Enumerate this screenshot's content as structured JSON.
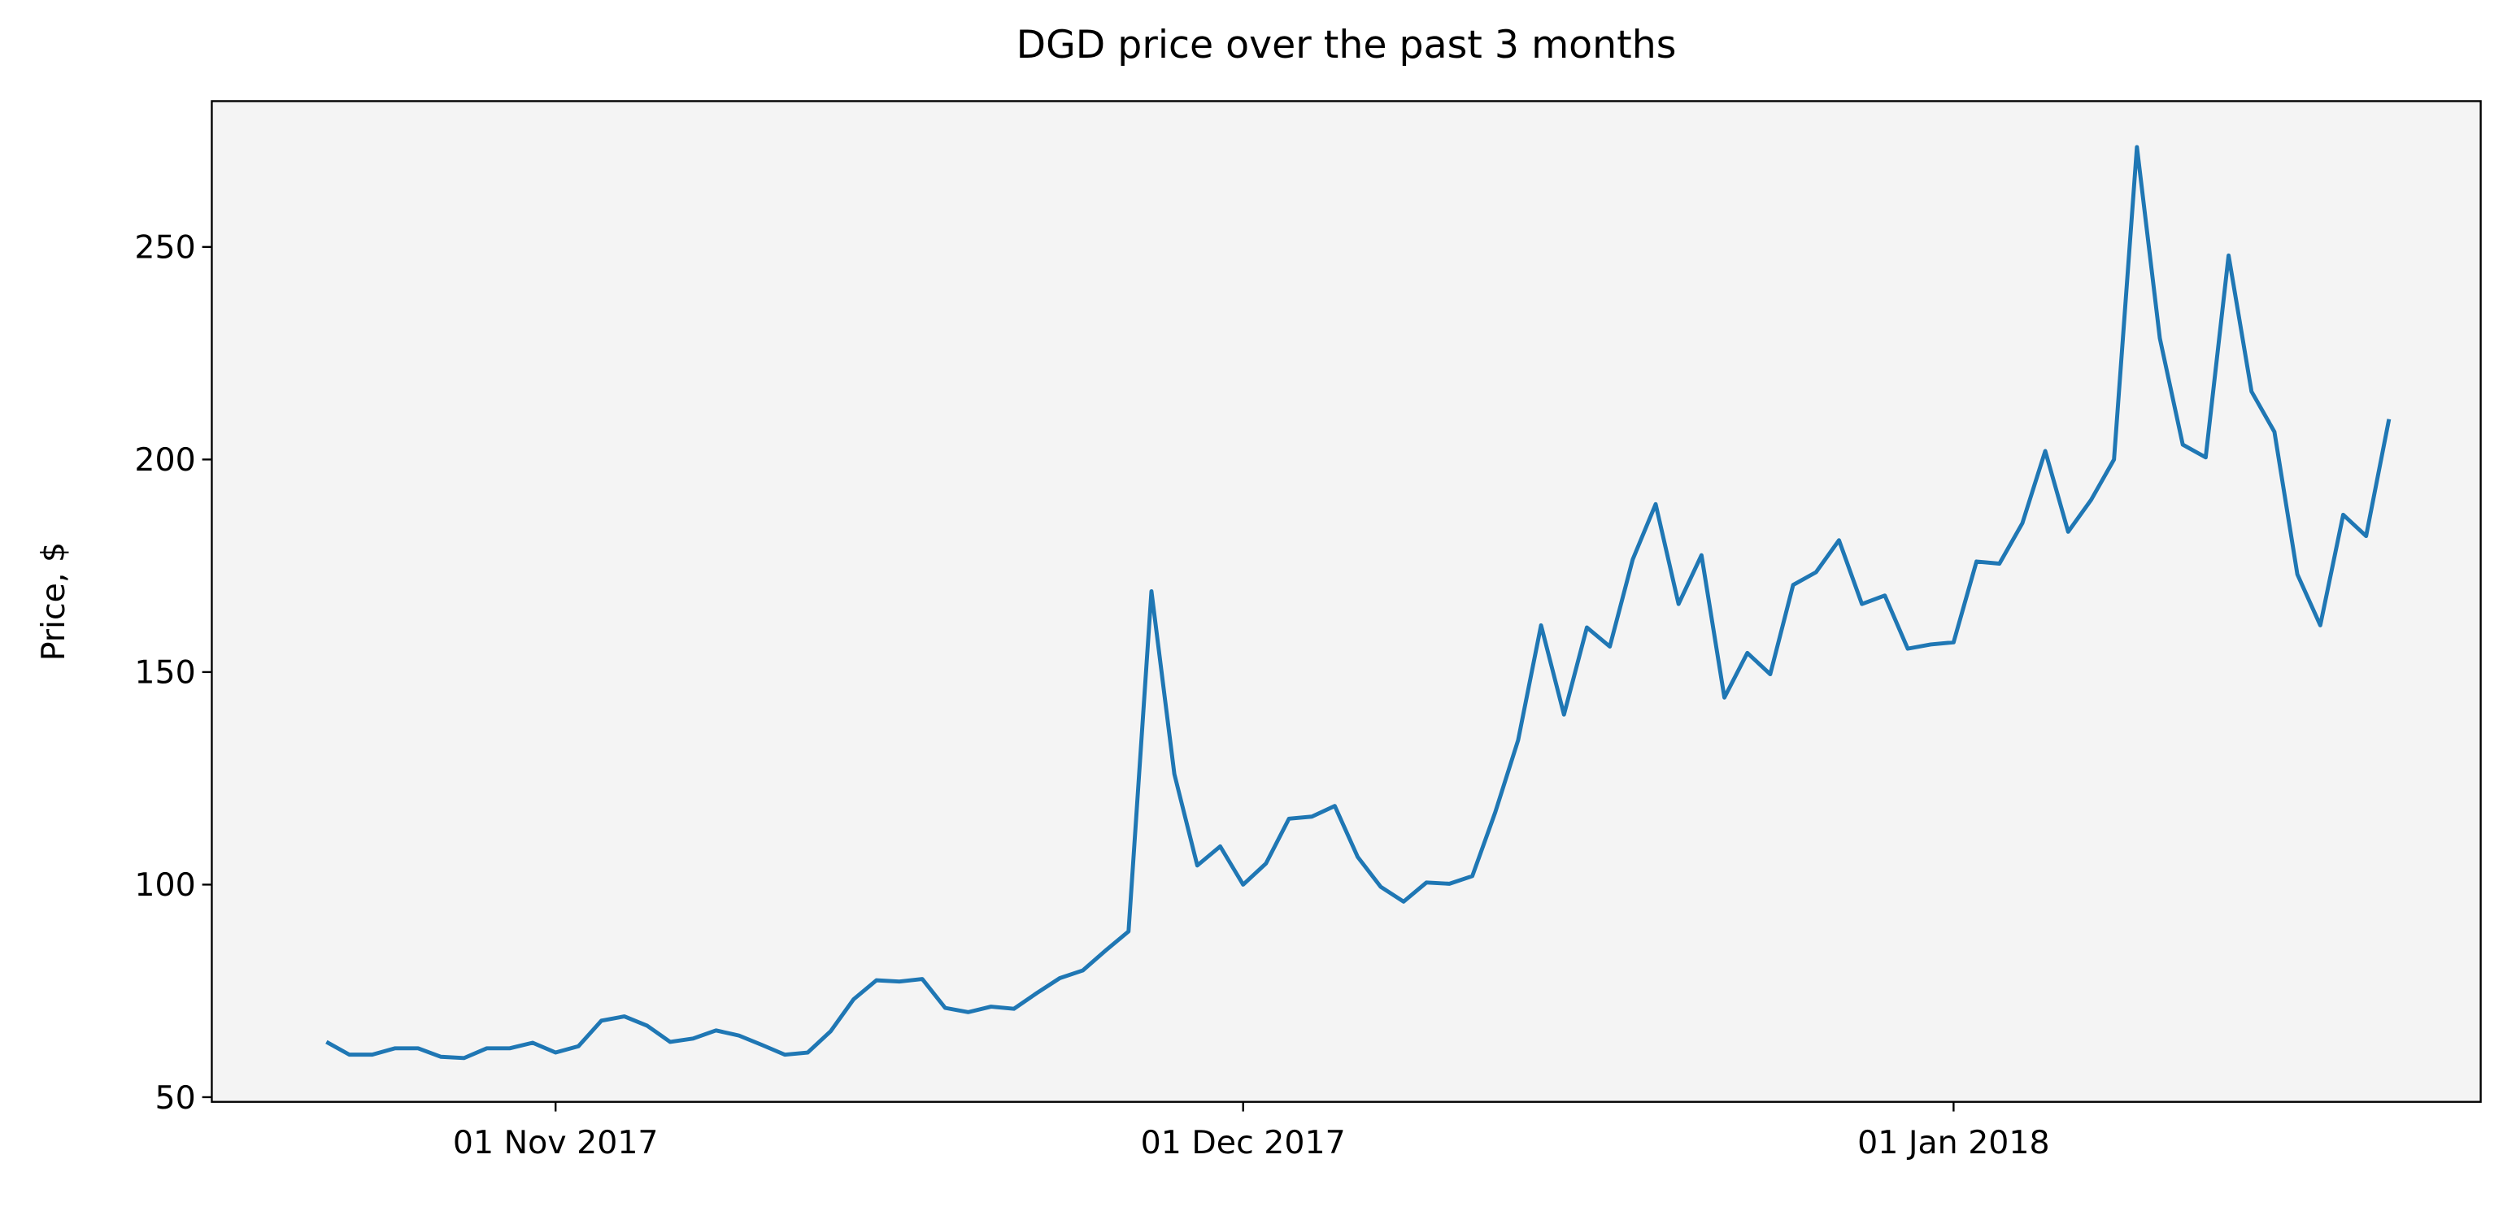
{
  "chart_data": {
    "type": "line",
    "title": "DGD price over the past 3 months",
    "y_label": "Price, $",
    "x": [
      "2017-10-22",
      "2017-10-23",
      "2017-10-24",
      "2017-10-25",
      "2017-10-26",
      "2017-10-27",
      "2017-10-28",
      "2017-10-29",
      "2017-10-30",
      "2017-10-31",
      "2017-11-01",
      "2017-11-02",
      "2017-11-03",
      "2017-11-04",
      "2017-11-05",
      "2017-11-06",
      "2017-11-07",
      "2017-11-08",
      "2017-11-09",
      "2017-11-10",
      "2017-11-11",
      "2017-11-12",
      "2017-11-13",
      "2017-11-14",
      "2017-11-15",
      "2017-11-16",
      "2017-11-17",
      "2017-11-18",
      "2017-11-19",
      "2017-11-20",
      "2017-11-21",
      "2017-11-22",
      "2017-11-23",
      "2017-11-24",
      "2017-11-25",
      "2017-11-26",
      "2017-11-27",
      "2017-11-28",
      "2017-11-29",
      "2017-11-30",
      "2017-12-01",
      "2017-12-02",
      "2017-12-03",
      "2017-12-04",
      "2017-12-05",
      "2017-12-06",
      "2017-12-07",
      "2017-12-08",
      "2017-12-09",
      "2017-12-10",
      "2017-12-11",
      "2017-12-12",
      "2017-12-13",
      "2017-12-14",
      "2017-12-15",
      "2017-12-16",
      "2017-12-17",
      "2017-12-18",
      "2017-12-19",
      "2017-12-20",
      "2017-12-21",
      "2017-12-22",
      "2017-12-23",
      "2017-12-24",
      "2017-12-25",
      "2017-12-26",
      "2017-12-27",
      "2017-12-28",
      "2017-12-29",
      "2017-12-30",
      "2017-12-31",
      "2018-01-01",
      "2018-01-02",
      "2018-01-03",
      "2018-01-04",
      "2018-01-05",
      "2018-01-06",
      "2018-01-07",
      "2018-01-08",
      "2018-01-09",
      "2018-01-10",
      "2018-01-11",
      "2018-01-12",
      "2018-01-13",
      "2018-01-14",
      "2018-01-15",
      "2018-01-16",
      "2018-01-17",
      "2018-01-18",
      "2018-01-19",
      "2018-01-20"
    ],
    "series": [
      {
        "color": "#1f77b4",
        "values": [
          63,
          60,
          60,
          61.5,
          61.5,
          59.5,
          59.2,
          61.5,
          61.5,
          62.8,
          60.5,
          62,
          68,
          69,
          66.8,
          63,
          63.8,
          65.7,
          64.5,
          62.3,
          60,
          60.5,
          65.5,
          73,
          77.5,
          77.2,
          77.8,
          71,
          70,
          71.3,
          70.8,
          74.5,
          78,
          79.8,
          84.5,
          89,
          169,
          126,
          104.5,
          109,
          100,
          105,
          115.5,
          116,
          118.5,
          106.5,
          99.5,
          96,
          100.5,
          100.2,
          102,
          117,
          134,
          161,
          140,
          160.5,
          156,
          176.5,
          189.5,
          166,
          177.5,
          144,
          154.5,
          149.5,
          170.5,
          173.5,
          181,
          166,
          168,
          155.5,
          156.5,
          157,
          176,
          175.5,
          185,
          202,
          183,
          190.5,
          200,
          273.5,
          228.5,
          203.5,
          200.5,
          248,
          216,
          206.5,
          173,
          161,
          187,
          182,
          209.5
        ]
      }
    ],
    "xlim": [
      "2017-10-17",
      "2018-01-24"
    ],
    "xticks": [
      {
        "value": "2017-11-01",
        "label": "01 Nov 2017"
      },
      {
        "value": "2017-12-01",
        "label": "01 Dec 2017"
      },
      {
        "value": "2018-01-01",
        "label": "01 Jan 2018"
      }
    ],
    "ylim": [
      48.9,
      284.3
    ],
    "yticks": [
      50,
      100,
      150,
      200,
      250
    ],
    "background": "#f4f4f4"
  }
}
